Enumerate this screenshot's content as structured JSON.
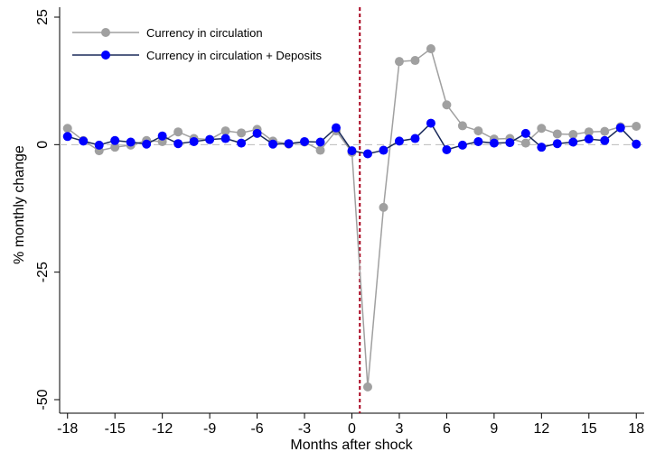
{
  "chart_data": {
    "type": "line",
    "title": "",
    "xlabel": "Months after shock",
    "ylabel": "% monthly change",
    "xlim": [
      -18.5,
      18.5
    ],
    "ylim": [
      -50,
      25
    ],
    "xticks": [
      -18,
      -15,
      -12,
      -9,
      -6,
      -3,
      0,
      3,
      6,
      9,
      12,
      15,
      18
    ],
    "xtick_labels": [
      "-18",
      "-15",
      "-12",
      "-9",
      "-6",
      "-3",
      "0",
      "3",
      "6",
      "9",
      "12",
      "15",
      "18"
    ],
    "yticks": [
      -50,
      -25,
      0,
      25
    ],
    "ytick_labels": [
      "-50",
      "-25",
      "0",
      "25"
    ],
    "reference_lines": {
      "horizontal_dashed_y": 0,
      "horizontal_color": "#bbbbbb",
      "vertical_dashed_x": 0.5,
      "vertical_color": "#a8001e"
    },
    "grid": false,
    "legend_position": "top-left",
    "x": [
      -18,
      -17,
      -16,
      -15,
      -14,
      -13,
      -12,
      -11,
      -10,
      -9,
      -8,
      -7,
      -6,
      -5,
      -4,
      -3,
      -2,
      -1,
      0,
      1,
      2,
      3,
      4,
      5,
      6,
      7,
      8,
      9,
      10,
      11,
      12,
      13,
      14,
      15,
      16,
      17,
      18
    ],
    "series": [
      {
        "name": "Currency in circulation",
        "color": "#a0a0a0",
        "values": [
          3.2,
          0.8,
          -1.2,
          -0.5,
          -0.1,
          0.8,
          0.6,
          2.5,
          1.2,
          1.0,
          2.7,
          2.3,
          3.0,
          0.7,
          0.1,
          0.5,
          -1.1,
          2.7,
          -1.5,
          -47.5,
          -12.3,
          16.3,
          16.5,
          18.8,
          7.8,
          3.7,
          2.7,
          1.1,
          1.2,
          0.3,
          3.2,
          2.1,
          2.0,
          2.5,
          2.6,
          3.5,
          3.6
        ]
      },
      {
        "name": "Currency in circulation + Deposits",
        "color": "#0000ff",
        "line_color": "#1a2a5a",
        "values": [
          1.6,
          0.7,
          -0.1,
          0.8,
          0.5,
          0.1,
          1.7,
          0.2,
          0.6,
          1.0,
          1.2,
          0.3,
          2.2,
          0.1,
          0.2,
          0.6,
          0.5,
          3.3,
          -1.2,
          -1.8,
          -1.1,
          0.7,
          1.2,
          4.2,
          -1.0,
          -0.1,
          0.6,
          0.3,
          0.4,
          2.2,
          -0.5,
          0.2,
          0.5,
          1.1,
          0.8,
          3.3,
          0.1
        ]
      }
    ]
  }
}
